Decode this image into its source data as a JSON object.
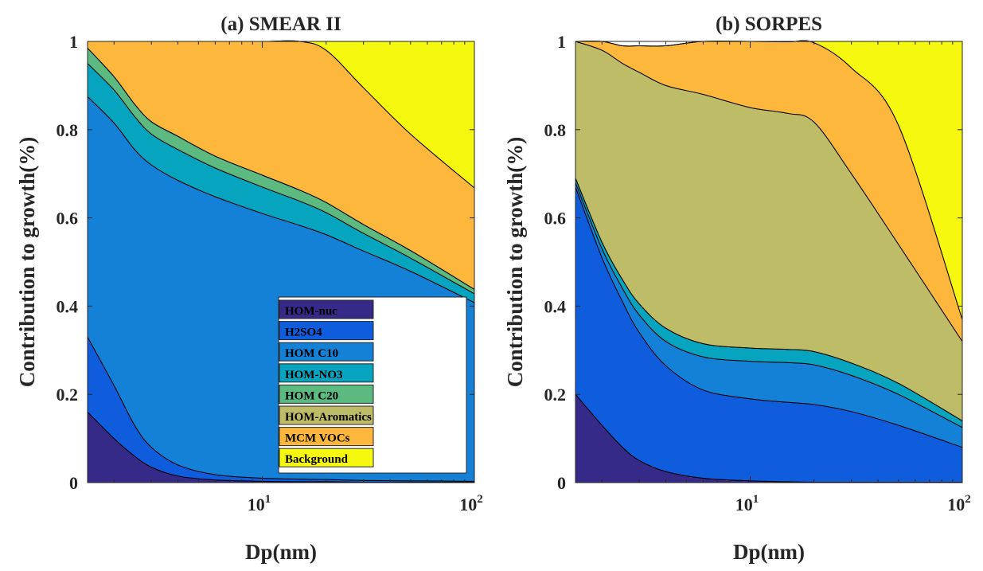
{
  "chart_data": [
    {
      "type": "area",
      "stacked": true,
      "title": "(a) SMEAR II",
      "xlabel": "Dp(nm)",
      "ylabel": "Contribution to growth(%)",
      "xscale": "log",
      "xlim": [
        1.5,
        100
      ],
      "ylim": [
        0,
        1
      ],
      "x_ticks": [
        {
          "base": "10",
          "exp": "1"
        },
        {
          "base": "10",
          "exp": "2"
        }
      ],
      "y_ticks": [
        "0",
        "0.2",
        "0.4",
        "0.6",
        "0.8",
        "1"
      ],
      "grid": false,
      "legend": {
        "placement": "bottom-right"
      },
      "x": [
        1.5,
        2,
        2.5,
        3,
        4,
        6,
        10,
        15,
        20,
        30,
        50,
        100
      ],
      "series": [
        {
          "name": "HOM-nuc",
          "color": "#352a87",
          "values": [
            0.16,
            0.1,
            0.06,
            0.035,
            0.015,
            0.006,
            0.003,
            0.002,
            0.002,
            0.001,
            0.001,
            0.001
          ]
        },
        {
          "name": "H2SO4",
          "color": "#0f5cdd",
          "values": [
            0.17,
            0.12,
            0.07,
            0.045,
            0.025,
            0.012,
            0.007,
            0.006,
            0.005,
            0.004,
            0.003,
            0.002
          ]
        },
        {
          "name": "HOM C10",
          "color": "#1481d6",
          "values": [
            0.545,
            0.595,
            0.625,
            0.64,
            0.645,
            0.63,
            0.6,
            0.575,
            0.555,
            0.52,
            0.475,
            0.405
          ]
        },
        {
          "name": "HOM-NO3",
          "color": "#06a4bf",
          "values": [
            0.075,
            0.075,
            0.075,
            0.07,
            0.07,
            0.065,
            0.06,
            0.055,
            0.05,
            0.04,
            0.03,
            0.02
          ]
        },
        {
          "name": "HOM C20",
          "color": "#5cba80",
          "values": [
            0.035,
            0.03,
            0.028,
            0.028,
            0.03,
            0.027,
            0.027,
            0.025,
            0.023,
            0.02,
            0.017,
            0.01
          ]
        },
        {
          "name": "HOM-Aromatics",
          "color": "#bfbc67",
          "values": [
            0,
            0,
            0,
            0,
            0,
            0,
            0,
            0,
            0,
            0,
            0,
            0
          ]
        },
        {
          "name": "MCM VOCs",
          "color": "#fcb73c",
          "values": [
            0.015,
            0.08,
            0.142,
            0.182,
            0.215,
            0.26,
            0.303,
            0.337,
            0.345,
            0.31,
            0.264,
            0.23
          ]
        },
        {
          "name": "Background",
          "color": "#f6f80f",
          "values": [
            0,
            0,
            0,
            0,
            0,
            0,
            0,
            0,
            0.02,
            0.105,
            0.21,
            0.332
          ]
        }
      ]
    },
    {
      "type": "area",
      "stacked": true,
      "title": "(b) SORPES",
      "xlabel": "Dp(nm)",
      "ylabel": "Contribution to growth(%)",
      "xscale": "log",
      "xlim": [
        1.5,
        100
      ],
      "ylim": [
        0,
        1
      ],
      "x_ticks": [
        {
          "base": "10",
          "exp": "1"
        },
        {
          "base": "10",
          "exp": "2"
        }
      ],
      "y_ticks": [
        "0",
        "0.2",
        "0.4",
        "0.6",
        "0.8",
        "1"
      ],
      "grid": false,
      "x": [
        1.5,
        2,
        2.5,
        3,
        4,
        6,
        10,
        15,
        20,
        30,
        50,
        100
      ],
      "series": [
        {
          "name": "HOM-nuc",
          "color": "#352a87",
          "values": [
            0.2,
            0.13,
            0.08,
            0.05,
            0.025,
            0.01,
            0.004,
            0.002,
            0.001,
            0.001,
            0.001,
            0.001
          ]
        },
        {
          "name": "H2SO4",
          "color": "#0f5cdd",
          "values": [
            0.47,
            0.38,
            0.33,
            0.29,
            0.24,
            0.2,
            0.186,
            0.18,
            0.176,
            0.16,
            0.129,
            0.079
          ]
        },
        {
          "name": "HOM C10",
          "color": "#1481d6",
          "values": [
            0.01,
            0.02,
            0.03,
            0.04,
            0.055,
            0.075,
            0.085,
            0.09,
            0.09,
            0.082,
            0.07,
            0.045
          ]
        },
        {
          "name": "HOM-NO3",
          "color": "#06a4bf",
          "values": [
            0.01,
            0.015,
            0.02,
            0.025,
            0.03,
            0.03,
            0.03,
            0.03,
            0.03,
            0.028,
            0.025,
            0.015
          ]
        },
        {
          "name": "HOM C20",
          "color": "#5cba80",
          "values": [
            0,
            0,
            0,
            0,
            0,
            0,
            0,
            0,
            0,
            0,
            0,
            0
          ]
        },
        {
          "name": "HOM-Aromatics",
          "color": "#bfbc67",
          "values": [
            0.31,
            0.435,
            0.49,
            0.525,
            0.55,
            0.565,
            0.545,
            0.535,
            0.52,
            0.429,
            0.315,
            0.18
          ]
        },
        {
          "name": "MCM VOCs",
          "color": "#fcb73c",
          "values": [
            0,
            0.02,
            0.04,
            0.06,
            0.09,
            0.12,
            0.15,
            0.162,
            0.18,
            0.24,
            0.27,
            0.05
          ]
        },
        {
          "name": "Background",
          "color": "#f6f80f",
          "values": [
            0,
            0,
            0,
            0,
            0,
            0,
            0,
            0.001,
            0.003,
            0.06,
            0.19,
            0.63
          ]
        }
      ]
    }
  ]
}
